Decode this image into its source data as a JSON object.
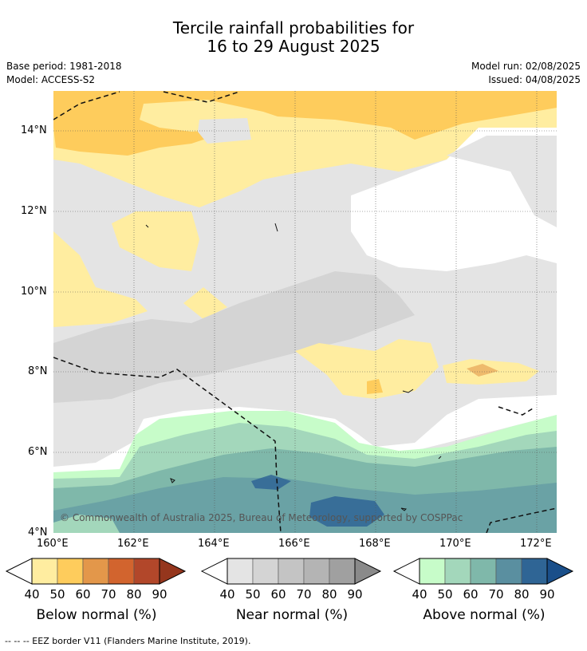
{
  "title": {
    "line1": "Tercile rainfall probabilities for",
    "line2": "16 to 29 August 2025"
  },
  "meta": {
    "base_period": "Base period: 1981-2018",
    "model": "Model: ACCESS-S2",
    "model_run": "Model run: 02/08/2025",
    "issued": "Issued: 04/08/2025"
  },
  "map": {
    "lat_ticks": [
      "14°N",
      "12°N",
      "10°N",
      "8°N",
      "6°N",
      "4°N"
    ],
    "lon_ticks": [
      "160°E",
      "162°E",
      "164°E",
      "166°E",
      "168°E",
      "170°E",
      "172°E"
    ],
    "copyright": "© Commonwealth of Australia 2025, Bureau of Meteorology, supported by COSPPac"
  },
  "colors": {
    "below": [
      "#ffeda0",
      "#fecc5c",
      "#e3974a",
      "#d2642e",
      "#b2472a",
      "#95361d"
    ],
    "near": [
      "#e4e4e4",
      "#d4d4d4",
      "#c4c4c4",
      "#b4b4b4",
      "#a0a0a0",
      "#8a8a8a"
    ],
    "above": [
      "#c7fcc9",
      "#a3d7bb",
      "#7fb8aa",
      "#5a8fa0",
      "#2f6595",
      "#1a4f8a"
    ]
  },
  "legends": {
    "below": {
      "label": "Below normal (%)",
      "ticks": [
        "40",
        "50",
        "60",
        "70",
        "80",
        "90"
      ]
    },
    "near": {
      "label": "Near normal (%)",
      "ticks": [
        "40",
        "50",
        "60",
        "70",
        "80",
        "90"
      ]
    },
    "above": {
      "label": "Above normal (%)",
      "ticks": [
        "40",
        "50",
        "60",
        "70",
        "80",
        "90"
      ]
    }
  },
  "footer": {
    "eez": "--  --  -- EEZ border V11 (Flanders Marine Institute, 2019)."
  }
}
